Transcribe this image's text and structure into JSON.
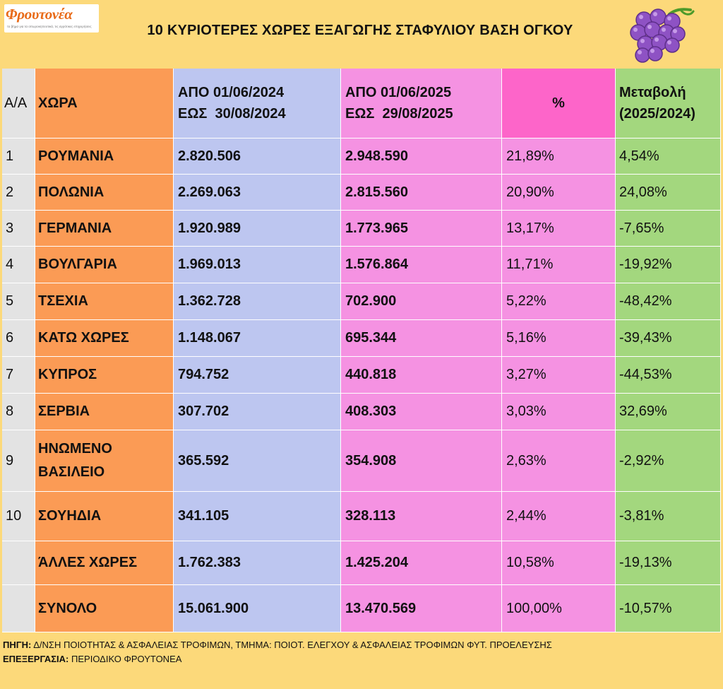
{
  "logo": {
    "name": "Φρουτονέα",
    "tagline": "το βήμα για τα οπωροκηπευτικά, τις αγρότικες επιχειρήσεις"
  },
  "title": "10 ΚΥΡΙΟΤΕΡΕΣ ΧΩΡΕΣ ΕΞΑΓΩΓΗΣ ΣΤΑΦΥΛΙΟΥ ΒΑΣΗ ΟΓΚΟΥ",
  "table": {
    "headers": {
      "aa": "Α/Α",
      "country": "ΧΩΡΑ",
      "period1_line1": "ΑΠΟ 01/06/2024",
      "period1_line2": "ΕΩΣ  30/08/2024",
      "period2_line1": "ΑΠΟ 01/06/2025",
      "period2_line2": "ΕΩΣ  29/08/2025",
      "percent": "%",
      "change_line1": "Μεταβολή",
      "change_line2": "(2025/2024)"
    },
    "rows": [
      {
        "aa": "1",
        "country": "ΡΟΥΜΑΝΙΑ",
        "v2024": "2.820.506",
        "v2025": "2.948.590",
        "pct": "21,89%",
        "change": "4,54%"
      },
      {
        "aa": "2",
        "country": "ΠΟΛΩΝΙΑ",
        "v2024": "2.269.063",
        "v2025": "2.815.560",
        "pct": "20,90%",
        "change": "24,08%"
      },
      {
        "aa": "3",
        "country": "ΓΕΡΜΑΝΙΑ",
        "v2024": "1.920.989",
        "v2025": "1.773.965",
        "pct": "13,17%",
        "change": "-7,65%"
      },
      {
        "aa": "4",
        "country": "ΒΟΥΛΓΑΡΙΑ",
        "v2024": "1.969.013",
        "v2025": "1.576.864",
        "pct": "11,71%",
        "change": "-19,92%"
      },
      {
        "aa": "5",
        "country": "ΤΣΕΧΙΑ",
        "v2024": "1.362.728",
        "v2025": "702.900",
        "pct": "5,22%",
        "change": "-48,42%"
      },
      {
        "aa": "6",
        "country": "ΚΑΤΩ ΧΩΡΕΣ",
        "v2024": "1.148.067",
        "v2025": "695.344",
        "pct": "5,16%",
        "change": "-39,43%"
      },
      {
        "aa": "7",
        "country": "ΚΥΠΡΟΣ",
        "v2024": "794.752",
        "v2025": "440.818",
        "pct": "3,27%",
        "change": "-44,53%"
      },
      {
        "aa": "8",
        "country": "ΣΕΡΒΙΑ",
        "v2024": "307.702",
        "v2025": "408.303",
        "pct": "3,03%",
        "change": "32,69%"
      },
      {
        "aa": "9",
        "country": "ΗΝΩΜΕΝΟ ΒΑΣΙΛΕΙΟ",
        "v2024": "365.592",
        "v2025": "354.908",
        "pct": "2,63%",
        "change": "-2,92%"
      },
      {
        "aa": "10",
        "country": "ΣΟΥΗΔΙΑ",
        "v2024": "341.105",
        "v2025": "328.113",
        "pct": "2,44%",
        "change": "-3,81%"
      },
      {
        "aa": "",
        "country": "ΆΛΛΕΣ ΧΩΡΕΣ",
        "v2024": "1.762.383",
        "v2025": "1.425.204",
        "pct": "10,58%",
        "change": "-19,13%"
      },
      {
        "aa": "",
        "country": "ΣΥΝΟΛΟ",
        "v2024": "15.061.900",
        "v2025": "13.470.569",
        "pct": "100,00%",
        "change": "-10,57%"
      }
    ]
  },
  "footer": {
    "source_label": "ΠΗΓΗ:",
    "source_text": "Δ/ΝΣΗ ΠΟΙΟΤΗΤΑΣ & ΑΣΦΑΛΕΙΑΣ ΤΡΟΦΙΜΩΝ, ΤΜΗΜΑ: ΠΟΙΟΤ. ΕΛΕΓΧΟΥ & ΑΣΦΑΛΕΙΑΣ ΤΡΟΦΙΜΩΝ ΦΥΤ. ΠΡΟΕΛΕΥΣΗΣ",
    "processing_label": "ΕΠΕΞΕΡΓΑΣΙΑ:",
    "processing_text": "ΠΕΡΙΟΔΙΚΟ ΦΡΟΥΤΟΝΕΑ"
  },
  "colors": {
    "background": "#fcd97a",
    "aa_column": "#e3e3e3",
    "country_column": "#fb9b55",
    "period1_column": "#bdc6f0",
    "period2_column": "#f592e2",
    "percent_header": "#fd65c9",
    "change_column": "#a3d77e",
    "logo_orange": "#e86a17",
    "grape_purple": "#8e52c4"
  },
  "icons": {
    "grapes": "grapes-icon"
  }
}
